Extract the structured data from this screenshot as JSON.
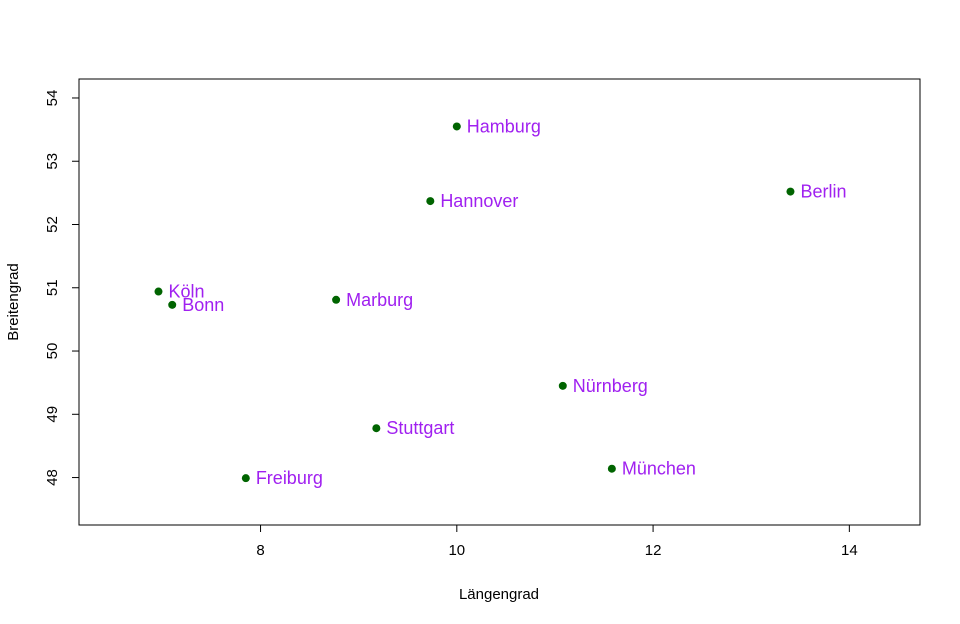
{
  "chart_data": {
    "type": "scatter",
    "title": "",
    "xlabel": "Längengrad",
    "ylabel": "Breitengrad",
    "xlim": [
      6.15,
      14.72
    ],
    "ylim": [
      47.25,
      54.3
    ],
    "xticks": [
      8,
      10,
      12,
      14
    ],
    "yticks": [
      48,
      49,
      50,
      51,
      52,
      53,
      54
    ],
    "grid": false,
    "legend": "none",
    "point_color": "#006400",
    "label_color": "#a020f0",
    "points": [
      {
        "label": "Hamburg",
        "x": 10.0,
        "y": 53.55
      },
      {
        "label": "Berlin",
        "x": 13.4,
        "y": 52.52
      },
      {
        "label": "Hannover",
        "x": 9.73,
        "y": 52.37
      },
      {
        "label": "Köln",
        "x": 6.96,
        "y": 50.94
      },
      {
        "label": "Bonn",
        "x": 7.1,
        "y": 50.73
      },
      {
        "label": "Marburg",
        "x": 8.77,
        "y": 50.81
      },
      {
        "label": "Nürnberg",
        "x": 11.08,
        "y": 49.45
      },
      {
        "label": "Stuttgart",
        "x": 9.18,
        "y": 48.78
      },
      {
        "label": "München",
        "x": 11.58,
        "y": 48.14
      },
      {
        "label": "Freiburg",
        "x": 7.85,
        "y": 47.99
      }
    ]
  }
}
